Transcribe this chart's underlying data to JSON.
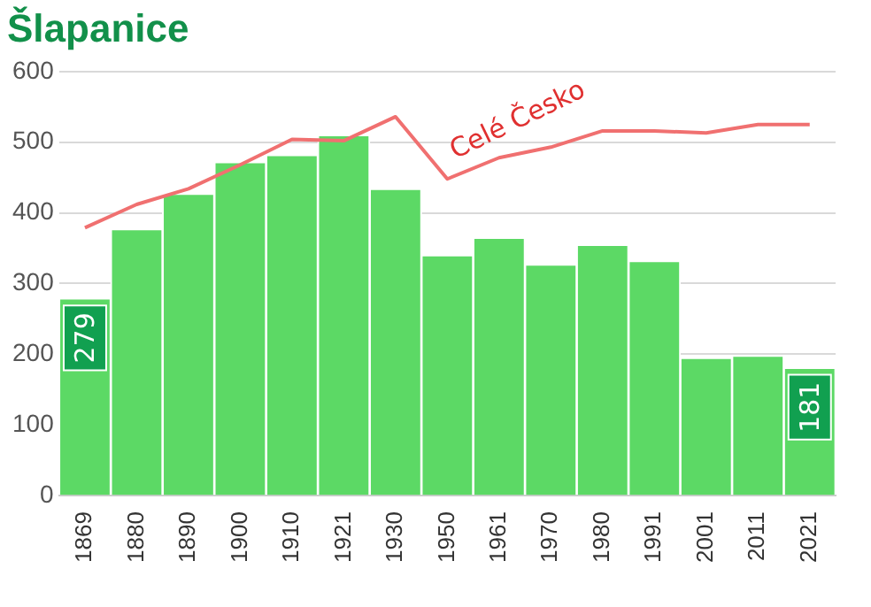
{
  "chart_data": {
    "type": "bar",
    "title": "Šlapanice",
    "categories": [
      "1869",
      "1880",
      "1890",
      "1900",
      "1910",
      "1921",
      "1930",
      "1950",
      "1961",
      "1970",
      "1980",
      "1991",
      "2001",
      "2011",
      "2021"
    ],
    "series": [
      {
        "color": "#5cd965",
        "values": [
          279,
          377,
          427,
          472,
          482,
          510,
          434,
          340,
          365,
          327,
          355,
          332,
          195,
          198,
          181
        ],
        "value_labels": [
          "279",
          null,
          null,
          null,
          null,
          null,
          null,
          null,
          null,
          null,
          null,
          null,
          null,
          null,
          "181"
        ]
      },
      {
        "type": "line",
        "name": "Celé Česko",
        "color": "#f07070",
        "values": [
          379,
          412,
          434,
          468,
          504,
          502,
          536,
          448,
          478,
          493,
          516,
          516,
          513,
          525,
          525
        ]
      }
    ],
    "ylim": [
      0,
      600
    ],
    "yticks": [
      0,
      100,
      200,
      300,
      400,
      500,
      600
    ],
    "grid": "y",
    "legend": false,
    "marker": "none"
  }
}
